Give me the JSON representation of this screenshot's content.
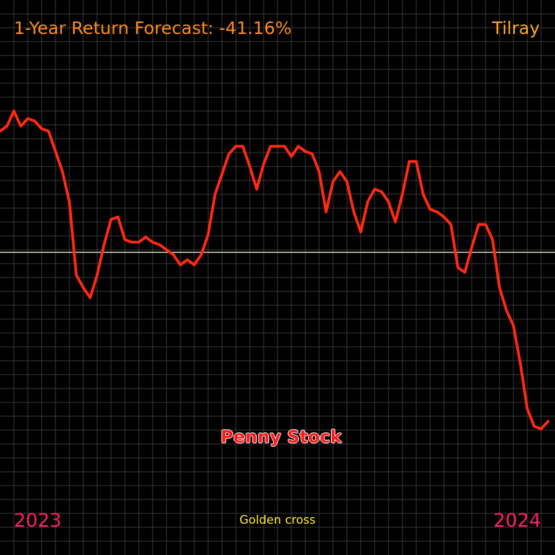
{
  "header": {
    "forecast_label": "1-Year Return Forecast: -41.16%",
    "ticker": "Tilray"
  },
  "badge": {
    "label": "Penny Stock"
  },
  "footer": {
    "start_year": "2023",
    "end_year": "2024",
    "signal": "Golden cross"
  },
  "colors": {
    "background": "#000000",
    "grid": "#3a3a3a",
    "baseline": "#d8d8c8",
    "line": "#ff2a12",
    "title": "#ff8c1a",
    "ticker": "#ffa726",
    "year": "#ff1f6a",
    "signal": "#ffeb3b"
  },
  "chart_data": {
    "type": "line",
    "title": "",
    "xlabel": "",
    "ylabel": "",
    "grid": true,
    "baseline_value": 0,
    "ylim": [
      -1.2,
      1.0
    ],
    "x": [
      0,
      1,
      2,
      3,
      4,
      5,
      6,
      7,
      8,
      9,
      10,
      11,
      12,
      13,
      14,
      15,
      16,
      17,
      18,
      19,
      20,
      21,
      22,
      23,
      24,
      25,
      26,
      27,
      28,
      29,
      30,
      31,
      32,
      33,
      34,
      35,
      36,
      37,
      38,
      39,
      40,
      41,
      42,
      43,
      44,
      45,
      46,
      47,
      48,
      49,
      50,
      51,
      52,
      53,
      54,
      55,
      56,
      57,
      58,
      59,
      60,
      61,
      62,
      63,
      64,
      65,
      66,
      67,
      68,
      69,
      70,
      71,
      72,
      73,
      74,
      75,
      76,
      77,
      78,
      79
    ],
    "series": [
      {
        "values": [
          0.48,
          0.5,
          0.56,
          0.5,
          0.53,
          0.52,
          0.49,
          0.48,
          0.4,
          0.32,
          0.2,
          -0.09,
          -0.14,
          -0.18,
          -0.09,
          0.03,
          0.13,
          0.14,
          0.05,
          0.04,
          0.04,
          0.06,
          0.04,
          0.03,
          0.01,
          -0.01,
          -0.05,
          -0.03,
          -0.05,
          -0.01,
          0.07,
          0.23,
          0.31,
          0.39,
          0.42,
          0.42,
          0.34,
          0.25,
          0.35,
          0.42,
          0.42,
          0.42,
          0.38,
          0.42,
          0.4,
          0.39,
          0.32,
          0.16,
          0.28,
          0.32,
          0.28,
          0.16,
          0.08,
          0.2,
          0.25,
          0.24,
          0.2,
          0.12,
          0.23,
          0.36,
          0.36,
          0.23,
          0.17,
          0.16,
          0.14,
          0.11,
          -0.06,
          -0.08,
          0.02,
          0.11,
          0.11,
          0.05,
          -0.14,
          -0.23,
          -0.29,
          -0.44,
          -0.62,
          -0.69,
          -0.7,
          -0.67
        ]
      }
    ]
  }
}
